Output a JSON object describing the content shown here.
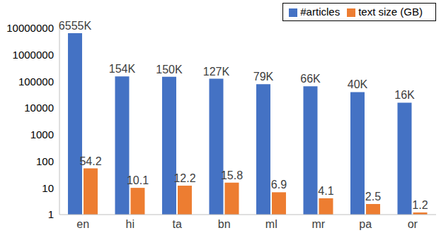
{
  "chart_data": {
    "type": "bar",
    "categories": [
      "en",
      "hi",
      "ta",
      "bn",
      "ml",
      "mr",
      "pa",
      "or"
    ],
    "series": [
      {
        "name": "#articles",
        "color": "#4472c4",
        "values": [
          6555000,
          154000,
          150000,
          127000,
          79000,
          66000,
          40000,
          16000
        ],
        "value_labels": [
          "6555K",
          "154K",
          "150K",
          "127K",
          "79K",
          "66K",
          "40K",
          "16K"
        ]
      },
      {
        "name": "text size (GB)",
        "color": "#ed7d31",
        "values": [
          54.2,
          10.1,
          12.2,
          15.8,
          6.9,
          4.1,
          2.5,
          1.2
        ]
      }
    ],
    "ylim": [
      1,
      10000000
    ],
    "yticks": [
      1,
      10,
      100,
      1000,
      10000,
      100000,
      1000000,
      10000000
    ],
    "log": "y",
    "grid": false,
    "legend": "top-right",
    "data_labels": true
  }
}
